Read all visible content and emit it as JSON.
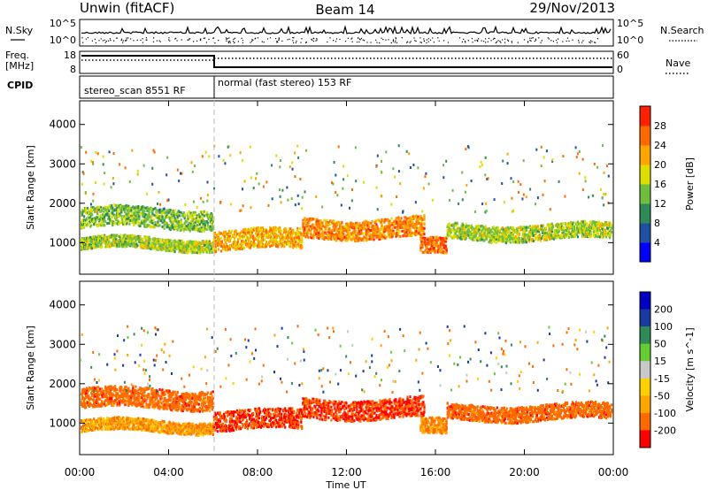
{
  "header": {
    "station": "Unwin (fitACF)",
    "beam": "Beam 14",
    "date": "29/Nov/2013"
  },
  "noise_panel": {
    "left_label": "N.Sky",
    "right_label": "N.Search",
    "y_ticks_left": [
      "10^5",
      "10^0"
    ],
    "y_ticks_right": [
      "10^5",
      "10^0"
    ]
  },
  "freq_panel": {
    "left_label_1": "Freq.",
    "left_label_2": "[MHz]",
    "right_label": "Nave",
    "y_ticks_left": [
      "18",
      "8"
    ],
    "y_ticks_right": [
      "60",
      "0"
    ]
  },
  "cpid": {
    "label": "CPID",
    "modes": [
      {
        "name": "stereo_scan 8551 RF",
        "start_hour": 0,
        "end_hour": 6
      },
      {
        "name": "normal (fast stereo) 153 RF",
        "start_hour": 6,
        "end_hour": 24
      }
    ]
  },
  "colors": {
    "power_scale": [
      "#0000ff",
      "#2050a0",
      "#2e8b57",
      "#6fbf3f",
      "#dddd00",
      "#ffa500",
      "#ff6a00",
      "#ff2000"
    ],
    "velocity_scale": [
      "#0000c0",
      "#1a3aa0",
      "#2e8b57",
      "#66cc33",
      "#c8c8c8",
      "#ffd000",
      "#ffa500",
      "#ff6a00",
      "#ff0000"
    ]
  },
  "chart_data": [
    {
      "type": "heatmap",
      "title": "Power",
      "ylabel": "Slant Range [km]",
      "ylim": [
        200,
        4600
      ],
      "y_ticks": [
        1000,
        2000,
        3000,
        4000
      ],
      "x_ticks": [
        "00:00",
        "04:00",
        "08:00",
        "12:00",
        "16:00",
        "20:00",
        "00:00"
      ],
      "xlim_hours": [
        0,
        24
      ],
      "colorbar": {
        "label": "Power [dB]",
        "ticks": [
          "4",
          "8",
          "12",
          "16",
          "20",
          "24",
          "28"
        ],
        "range": [
          0,
          32
        ]
      },
      "echo_bands": [
        {
          "hour_start": 0,
          "hour_end": 6,
          "range_center_km": 1650,
          "range_spread_km": 250,
          "typical_value": 14
        },
        {
          "hour_start": 0,
          "hour_end": 6,
          "range_center_km": 1000,
          "range_spread_km": 150,
          "typical_value": 16
        },
        {
          "hour_start": 6,
          "hour_end": 10,
          "range_center_km": 1100,
          "range_spread_km": 250,
          "typical_value": 22
        },
        {
          "hour_start": 10,
          "hour_end": 15.5,
          "range_center_km": 1400,
          "range_spread_km": 250,
          "typical_value": 24
        },
        {
          "hour_start": 15.3,
          "hour_end": 16.5,
          "range_center_km": 900,
          "range_spread_km": 200,
          "typical_value": 26
        },
        {
          "hour_start": 16.5,
          "hour_end": 24,
          "range_center_km": 1300,
          "range_spread_km": 200,
          "typical_value": 16
        }
      ]
    },
    {
      "type": "heatmap",
      "title": "Velocity",
      "ylabel": "Slant Range [km]",
      "xlabel": "Time UT",
      "ylim": [
        200,
        4600
      ],
      "y_ticks": [
        1000,
        2000,
        3000,
        4000
      ],
      "x_ticks": [
        "00:00",
        "04:00",
        "08:00",
        "12:00",
        "16:00",
        "20:00",
        "00:00"
      ],
      "xlim_hours": [
        0,
        24
      ],
      "colorbar": {
        "label": "Velocity [m s^-1]",
        "ticks": [
          "200",
          "100",
          "50",
          "15",
          "-15",
          "-50",
          "-100",
          "-200"
        ],
        "range": [
          -250,
          250
        ]
      },
      "echo_bands": [
        {
          "hour_start": 0,
          "hour_end": 6,
          "range_center_km": 1650,
          "range_spread_km": 250,
          "typical_value": -150
        },
        {
          "hour_start": 0,
          "hour_end": 6,
          "range_center_km": 950,
          "range_spread_km": 150,
          "typical_value": -80
        },
        {
          "hour_start": 6,
          "hour_end": 10,
          "range_center_km": 1100,
          "range_spread_km": 250,
          "typical_value": -200
        },
        {
          "hour_start": 10,
          "hour_end": 15.5,
          "range_center_km": 1400,
          "range_spread_km": 250,
          "typical_value": -200
        },
        {
          "hour_start": 15.3,
          "hour_end": 16.5,
          "range_center_km": 900,
          "range_spread_km": 200,
          "typical_value": -100
        },
        {
          "hour_start": 16.5,
          "hour_end": 24,
          "range_center_km": 1300,
          "range_spread_km": 200,
          "typical_value": -150
        }
      ]
    }
  ]
}
